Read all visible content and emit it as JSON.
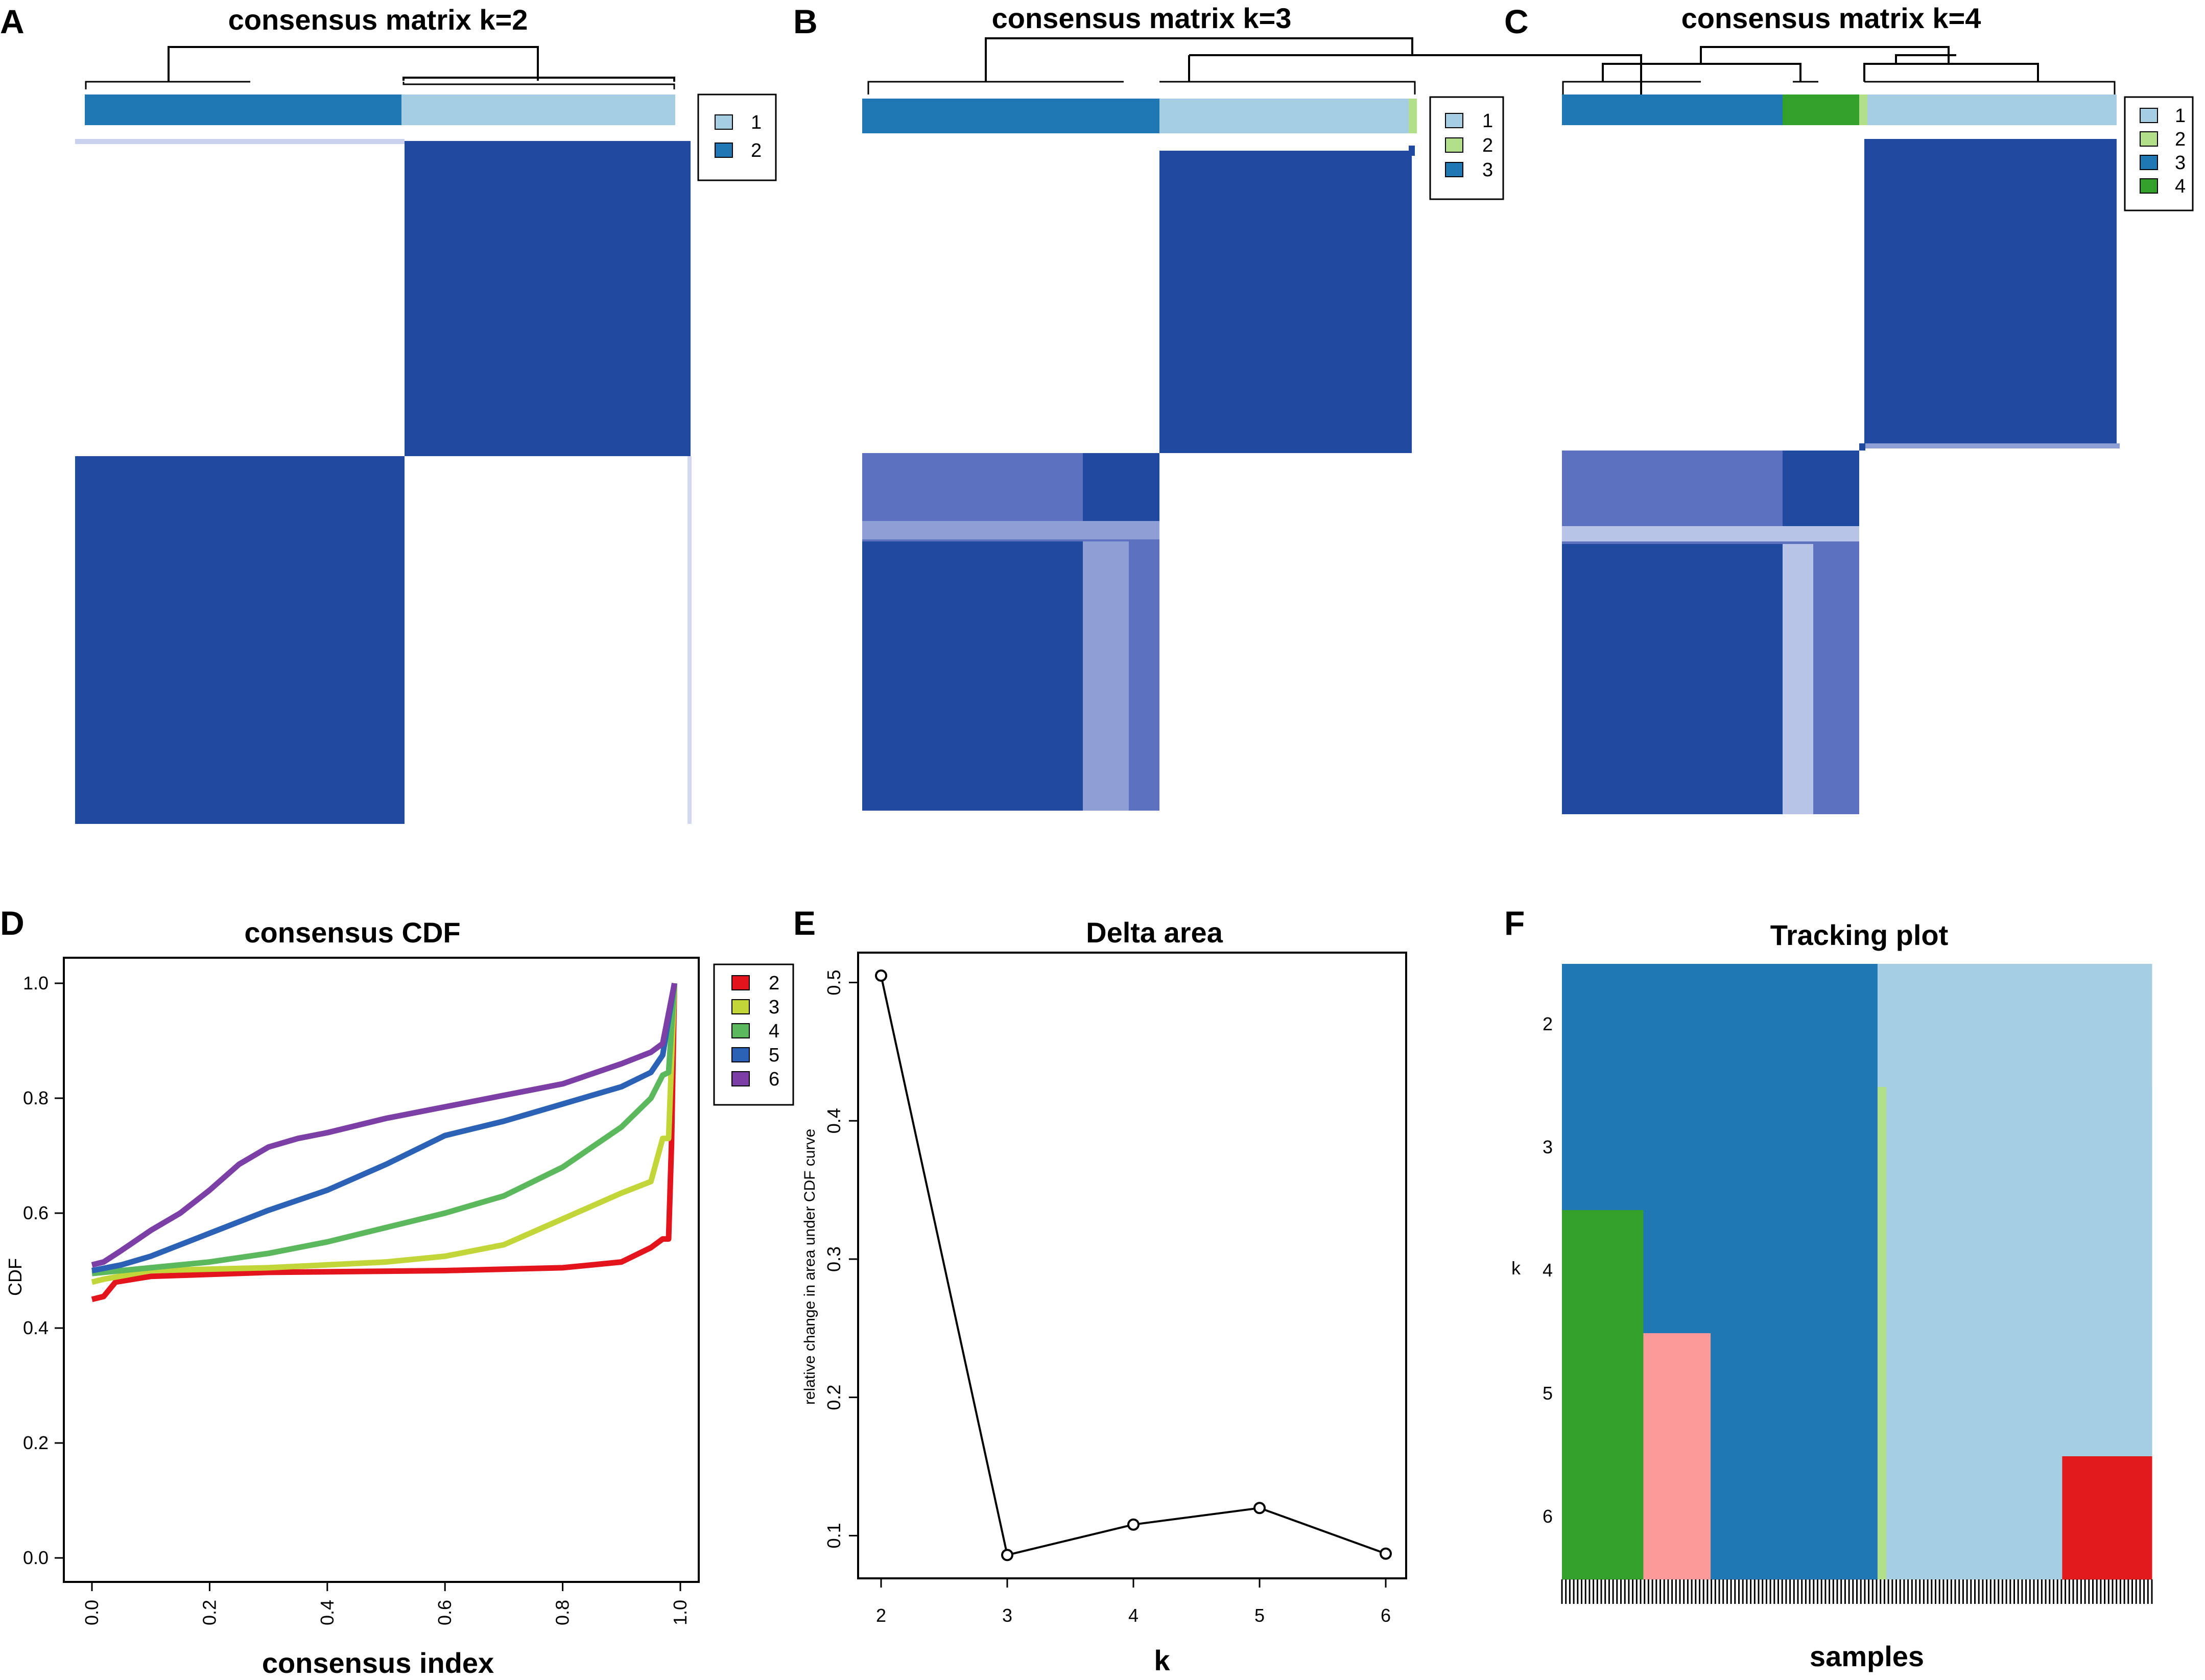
{
  "colors": {
    "cluster_light_blue": "#a6cee3",
    "cluster_dark_blue": "#1f78b4",
    "cluster_light_green": "#b2df8a",
    "cluster_green": "#33a02c",
    "cluster_pink": "#fb9a99",
    "cluster_red": "#e31a1c",
    "heatmap_blue": "#1f4aa0",
    "cdf_2": "#e3141c",
    "cdf_3": "#c2d63a",
    "cdf_4": "#5cb85c",
    "cdf_5": "#2b62b6",
    "cdf_6": "#7b3fa6"
  },
  "panels": {
    "A": {
      "letter": "A",
      "title": "consensus matrix k=2",
      "legend": [
        "1",
        "2"
      ]
    },
    "B": {
      "letter": "B",
      "title": "consensus matrix k=3",
      "legend": [
        "1",
        "2",
        "3"
      ]
    },
    "C": {
      "letter": "C",
      "title": "consensus matrix k=4",
      "legend": [
        "1",
        "2",
        "3",
        "4"
      ]
    },
    "D": {
      "letter": "D"
    },
    "E": {
      "letter": "E"
    },
    "F": {
      "letter": "F"
    }
  },
  "chart_data": [
    {
      "panel": "A",
      "type": "heatmap",
      "title": "consensus matrix k=2",
      "legend": [
        "1",
        "2"
      ],
      "cluster_bar_fractions": [
        0.518,
        0.482
      ],
      "cluster_bar_order": [
        "2",
        "1"
      ],
      "blocks": "two diagonal blocks of high consensus (cluster 1 top-right, cluster 2 bottom-left)"
    },
    {
      "panel": "B",
      "type": "heatmap",
      "title": "consensus matrix k=3",
      "legend": [
        "1",
        "2",
        "3"
      ],
      "cluster_bar_fractions": [
        0.538,
        0.448,
        0.014
      ],
      "cluster_bar_order": [
        "3",
        "1",
        "2"
      ]
    },
    {
      "panel": "C",
      "type": "heatmap",
      "title": "consensus matrix k=4",
      "legend": [
        "1",
        "2",
        "3",
        "4"
      ],
      "cluster_bar_fractions": [
        0.396,
        0.138,
        0.014,
        0.452
      ],
      "cluster_bar_order": [
        "3",
        "4",
        "2",
        "1"
      ]
    },
    {
      "panel": "D",
      "type": "line",
      "title": "consensus CDF",
      "xlabel": "consensus index",
      "ylabel": "CDF",
      "xlim": [
        0,
        1
      ],
      "ylim": [
        0,
        1
      ],
      "xticks": [
        "0.0",
        "0.2",
        "0.4",
        "0.6",
        "0.8",
        "1.0"
      ],
      "yticks": [
        "0.0",
        "0.2",
        "0.4",
        "0.6",
        "0.8",
        "1.0"
      ],
      "legend": [
        "2",
        "3",
        "4",
        "5",
        "6"
      ],
      "series": [
        {
          "name": "2",
          "x": [
            0.0,
            0.02,
            0.04,
            0.1,
            0.3,
            0.6,
            0.8,
            0.9,
            0.95,
            0.97,
            0.98,
            0.985,
            0.99
          ],
          "y": [
            0.45,
            0.455,
            0.48,
            0.49,
            0.497,
            0.5,
            0.505,
            0.515,
            0.54,
            0.555,
            0.555,
            0.72,
            1.0
          ]
        },
        {
          "name": "3",
          "x": [
            0.0,
            0.02,
            0.1,
            0.3,
            0.5,
            0.6,
            0.7,
            0.8,
            0.9,
            0.95,
            0.97,
            0.98,
            0.99
          ],
          "y": [
            0.48,
            0.485,
            0.5,
            0.505,
            0.515,
            0.525,
            0.545,
            0.59,
            0.635,
            0.655,
            0.73,
            0.73,
            1.0
          ]
        },
        {
          "name": "4",
          "x": [
            0.0,
            0.05,
            0.1,
            0.2,
            0.3,
            0.4,
            0.5,
            0.6,
            0.7,
            0.8,
            0.9,
            0.95,
            0.97,
            0.98,
            0.99
          ],
          "y": [
            0.495,
            0.5,
            0.505,
            0.515,
            0.53,
            0.55,
            0.575,
            0.6,
            0.63,
            0.68,
            0.75,
            0.8,
            0.84,
            0.845,
            1.0
          ]
        },
        {
          "name": "5",
          "x": [
            0.0,
            0.05,
            0.1,
            0.2,
            0.3,
            0.4,
            0.5,
            0.6,
            0.7,
            0.8,
            0.9,
            0.95,
            0.97,
            0.99
          ],
          "y": [
            0.5,
            0.51,
            0.525,
            0.565,
            0.605,
            0.64,
            0.685,
            0.735,
            0.76,
            0.79,
            0.82,
            0.845,
            0.875,
            1.0
          ]
        },
        {
          "name": "6",
          "x": [
            0.0,
            0.02,
            0.05,
            0.1,
            0.15,
            0.2,
            0.25,
            0.3,
            0.35,
            0.4,
            0.5,
            0.6,
            0.7,
            0.8,
            0.9,
            0.95,
            0.97,
            0.99
          ],
          "y": [
            0.51,
            0.515,
            0.535,
            0.57,
            0.6,
            0.64,
            0.685,
            0.715,
            0.73,
            0.74,
            0.765,
            0.785,
            0.805,
            0.825,
            0.86,
            0.88,
            0.895,
            1.0
          ]
        }
      ]
    },
    {
      "panel": "E",
      "type": "line",
      "title": "Delta area",
      "xlabel": "k",
      "ylabel": "relative change in area under CDF curve",
      "xlim": [
        2,
        6
      ],
      "ylim": [
        0.085,
        0.505
      ],
      "xticks": [
        "2",
        "3",
        "4",
        "5",
        "6"
      ],
      "yticks": [
        "0.1",
        "0.2",
        "0.3",
        "0.4",
        "0.5"
      ],
      "x": [
        2,
        3,
        4,
        5,
        6
      ],
      "y": [
        0.505,
        0.086,
        0.108,
        0.12,
        0.087
      ],
      "marker": "o"
    },
    {
      "panel": "F",
      "type": "heatmap",
      "title": "Tracking plot",
      "xlabel": "samples",
      "ylabel": "k",
      "yticks": [
        "2",
        "3",
        "4",
        "5",
        "6"
      ],
      "segments_by_k": {
        "2": [
          {
            "from": 0.0,
            "to": 0.535,
            "cluster": "dark_blue"
          },
          {
            "from": 0.535,
            "to": 1.0,
            "cluster": "light_blue"
          }
        ],
        "3": [
          {
            "from": 0.0,
            "to": 0.535,
            "cluster": "dark_blue"
          },
          {
            "from": 0.535,
            "to": 0.55,
            "cluster": "light_green"
          },
          {
            "from": 0.55,
            "to": 1.0,
            "cluster": "light_blue"
          }
        ],
        "4": [
          {
            "from": 0.0,
            "to": 0.138,
            "cluster": "green"
          },
          {
            "from": 0.138,
            "to": 0.535,
            "cluster": "dark_blue"
          },
          {
            "from": 0.535,
            "to": 0.55,
            "cluster": "light_green"
          },
          {
            "from": 0.55,
            "to": 1.0,
            "cluster": "light_blue"
          }
        ],
        "5": [
          {
            "from": 0.0,
            "to": 0.138,
            "cluster": "green"
          },
          {
            "from": 0.138,
            "to": 0.252,
            "cluster": "pink"
          },
          {
            "from": 0.252,
            "to": 0.535,
            "cluster": "dark_blue"
          },
          {
            "from": 0.535,
            "to": 0.55,
            "cluster": "light_green"
          },
          {
            "from": 0.55,
            "to": 1.0,
            "cluster": "light_blue"
          }
        ],
        "6": [
          {
            "from": 0.0,
            "to": 0.138,
            "cluster": "green"
          },
          {
            "from": 0.138,
            "to": 0.252,
            "cluster": "pink"
          },
          {
            "from": 0.252,
            "to": 0.535,
            "cluster": "dark_blue"
          },
          {
            "from": 0.535,
            "to": 0.55,
            "cluster": "light_green"
          },
          {
            "from": 0.55,
            "to": 0.848,
            "cluster": "light_blue"
          },
          {
            "from": 0.848,
            "to": 1.0,
            "cluster": "red"
          }
        ]
      }
    }
  ]
}
